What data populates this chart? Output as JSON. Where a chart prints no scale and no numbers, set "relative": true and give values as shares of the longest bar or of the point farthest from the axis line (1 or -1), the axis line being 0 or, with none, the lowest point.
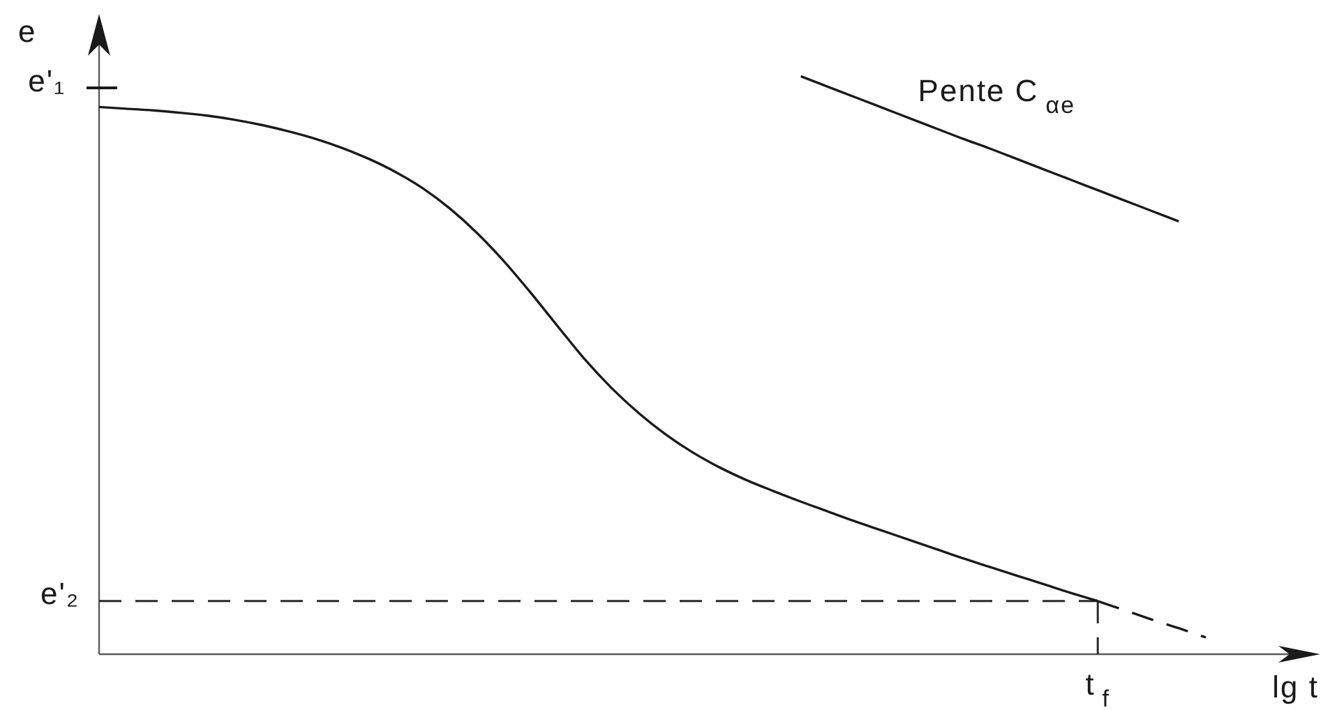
{
  "chart_data": {
    "type": "line",
    "relative": true,
    "xlabel": "lg t",
    "ylabel": "e",
    "legend": false,
    "marker": "none",
    "categories": [
      null,
      null,
      null,
      null,
      null,
      null,
      null,
      null,
      null,
      null,
      null,
      null,
      null,
      null,
      null,
      null,
      null,
      null,
      null,
      null,
      null,
      null,
      null,
      null,
      null,
      null,
      null,
      null,
      null,
      null,
      null,
      null,
      null,
      null,
      null,
      null,
      null,
      null,
      null,
      null,
      null,
      null,
      null,
      null,
      null
    ],
    "series": [
      {
        "color": "#1a1a1a",
        "values": [
          0.947,
          0.944,
          0.941,
          0.937,
          0.932,
          0.925,
          0.916,
          0.905,
          0.892,
          0.876,
          0.857,
          0.834,
          0.806,
          0.771,
          0.729,
          0.68,
          0.625,
          0.567,
          0.51,
          0.46,
          0.417,
          0.38,
          0.349,
          0.323,
          0.301,
          0.282,
          0.264,
          0.247,
          0.23,
          0.214,
          0.198,
          0.182,
          0.166,
          0.151,
          0.136,
          0.121,
          0.106,
          0.092,
          null,
          null,
          null,
          null,
          null,
          null,
          null
        ]
      },
      {
        "color": "#1a1a1a",
        "line_style": "dashed",
        "values": [
          null,
          null,
          null,
          null,
          null,
          null,
          null,
          null,
          null,
          null,
          null,
          null,
          null,
          null,
          null,
          null,
          null,
          null,
          null,
          null,
          null,
          null,
          null,
          null,
          null,
          null,
          null,
          null,
          null,
          null,
          null,
          null,
          null,
          null,
          null,
          null,
          null,
          0.092,
          0.076,
          0.06,
          0.045,
          0.029,
          null,
          null,
          null
        ]
      },
      {
        "name": "Pente C$_{αe}$",
        "color": "#1a1a1a",
        "values": [
          null,
          null,
          null,
          null,
          null,
          null,
          null,
          null,
          null,
          null,
          null,
          null,
          null,
          null,
          null,
          null,
          null,
          null,
          null,
          null,
          null,
          null,
          null,
          null,
          null,
          null,
          1.0,
          0.982,
          0.964,
          0.946,
          0.928,
          0.91,
          0.892,
          0.875,
          0.857,
          0.839,
          0.821,
          0.803,
          0.785,
          0.767,
          0.749,
          null,
          null,
          null,
          null
        ]
      }
    ],
    "ref_lines": [
      {
        "axis": "y",
        "value": 0.092,
        "label": "e'₂",
        "line_style": "dashed",
        "color": "#2a2a2a"
      }
    ],
    "annotations": [
      "e'₁",
      "t$_{f}$"
    ]
  }
}
